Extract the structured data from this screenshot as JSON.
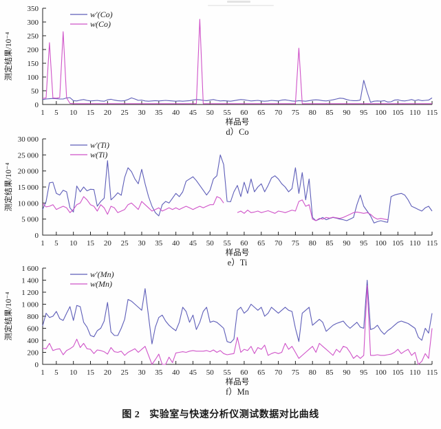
{
  "page": {
    "caption_prefix": "图 2",
    "caption_text": "实验室与快速分析仪测试数据对比曲线"
  },
  "colors": {
    "series_primary": "#5d5db8",
    "series_secondary": "#cf52c8",
    "axis": "#222222"
  },
  "chart_data": [
    {
      "type": "line",
      "subtitle": "d）Co",
      "xlabel": "样品号",
      "ylabel": "测定结果/10⁻⁴",
      "xlim": [
        1,
        115
      ],
      "ylim": [
        0,
        350
      ],
      "grid": false,
      "legend_position": "top-left-inside",
      "yticks": [
        0,
        50,
        100,
        150,
        200,
        250,
        300,
        350
      ],
      "ytick_labels": [
        "0",
        "50",
        "100",
        "150",
        "200",
        "250",
        "300",
        "350"
      ],
      "xticks": [
        1,
        5,
        10,
        15,
        20,
        25,
        30,
        35,
        40,
        45,
        50,
        55,
        60,
        65,
        70,
        75,
        80,
        85,
        90,
        95,
        100,
        105,
        110,
        115
      ],
      "series": [
        {
          "name": "w′(Co)",
          "color_key": "series_primary",
          "values": [
            18,
            20,
            21,
            22,
            21,
            20,
            20,
            24,
            25,
            14,
            13,
            16,
            18,
            15,
            13,
            14,
            15,
            13,
            12,
            17,
            19,
            16,
            14,
            13,
            14,
            18,
            24,
            20,
            15,
            16,
            13,
            12,
            13,
            14,
            13,
            14,
            15,
            14,
            13,
            12,
            13,
            12,
            13,
            14,
            16,
            18,
            17,
            15,
            14,
            16,
            18,
            15,
            13,
            14,
            13,
            12,
            14,
            16,
            18,
            17,
            15,
            13,
            14,
            15,
            13,
            12,
            13,
            15,
            14,
            13,
            16,
            17,
            15,
            13,
            12,
            14,
            13,
            12,
            14,
            16,
            17,
            16,
            14,
            13,
            15,
            17,
            20,
            23,
            22,
            18,
            15,
            14,
            14,
            16,
            88,
            45,
            8,
            12,
            13,
            12,
            14,
            9,
            10,
            16,
            17,
            14,
            13,
            15,
            18,
            14,
            17,
            14,
            15,
            16,
            24
          ]
        },
        {
          "name": "w(Co)",
          "color_key": "series_secondary",
          "values": [
            22,
            24,
            225,
            24,
            23,
            25,
            265,
            24,
            4,
            3,
            3,
            3,
            3,
            3,
            3,
            3,
            3,
            3,
            3,
            3,
            3,
            3,
            3,
            3,
            3,
            3,
            3,
            3,
            3,
            3,
            3,
            3,
            3,
            3,
            3,
            3,
            3,
            3,
            3,
            3,
            3,
            3,
            3,
            3,
            3,
            3,
            310,
            3,
            3,
            3,
            3,
            3,
            3,
            3,
            3,
            3,
            3,
            3,
            3,
            3,
            3,
            3,
            3,
            3,
            3,
            3,
            3,
            3,
            3,
            3,
            3,
            3,
            3,
            3,
            3,
            205,
            3,
            3,
            3,
            3,
            3,
            3,
            3,
            3,
            3,
            3,
            3,
            3,
            3,
            3,
            3,
            3,
            3,
            3,
            3,
            3,
            3,
            3,
            3,
            3,
            3,
            3,
            3,
            3,
            3,
            3,
            3,
            3,
            3,
            3,
            3,
            3,
            3,
            3,
            3
          ]
        }
      ]
    },
    {
      "type": "line",
      "subtitle": "e）Ti",
      "xlabel": "样品号",
      "ylabel": "测定结果/10⁻⁴",
      "xlim": [
        1,
        115
      ],
      "ylim": [
        0,
        30000
      ],
      "grid": false,
      "legend_position": "top-left-inside",
      "yticks": [
        0,
        5000,
        10000,
        15000,
        20000,
        25000,
        30000
      ],
      "ytick_labels": [
        "0",
        "5 000",
        "10 000",
        "15 000",
        "20 000",
        "25 000",
        "30 000"
      ],
      "xticks": [
        1,
        5,
        10,
        15,
        20,
        25,
        30,
        35,
        40,
        45,
        50,
        55,
        60,
        65,
        70,
        75,
        80,
        85,
        90,
        95,
        100,
        105,
        110,
        115
      ],
      "series": [
        {
          "name": "w′(Ti)",
          "color_key": "series_primary",
          "values": [
            8000,
            10500,
            16300,
            16500,
            13000,
            12500,
            14000,
            13500,
            8500,
            7200,
            15300,
            13500,
            15000,
            13800,
            14300,
            14200,
            9000,
            10500,
            11500,
            23200,
            11000,
            12000,
            13200,
            12400,
            18000,
            21000,
            19800,
            17500,
            16000,
            20500,
            16000,
            12000,
            9000,
            7000,
            6000,
            9500,
            10500,
            10000,
            11500,
            13000,
            12000,
            13500,
            16800,
            17500,
            18200,
            17000,
            15500,
            14000,
            12500,
            14000,
            17500,
            18500,
            25000,
            22000,
            10500,
            10400,
            13500,
            15500,
            12000,
            16500,
            13000,
            17500,
            13500,
            15000,
            16000,
            13500,
            15500,
            17800,
            18500,
            17500,
            16000,
            15000,
            13500,
            14500,
            21000,
            13000,
            19500,
            11000,
            17500,
            5500,
            4500,
            5000,
            5500,
            4800,
            5200,
            5500,
            5300,
            5000,
            4800,
            4500,
            5000,
            5500,
            9500,
            12500,
            9000,
            7500,
            6000,
            3800,
            4200,
            4500,
            4200,
            4000,
            12000,
            12500,
            12800,
            13000,
            12500,
            11000,
            9000,
            8500,
            8000,
            7500,
            8500,
            9000,
            7500
          ]
        },
        {
          "name": "w(Ti)",
          "color_key": "series_secondary",
          "values": [
            9800,
            8800,
            9000,
            9500,
            8000,
            8500,
            9000,
            8500,
            7000,
            8000,
            9500,
            10000,
            12000,
            11000,
            9500,
            9000,
            7500,
            9500,
            8500,
            6500,
            9000,
            8500,
            7000,
            7500,
            8000,
            9500,
            10000,
            9000,
            8000,
            10500,
            9500,
            8500,
            7500,
            8000,
            8500,
            7500,
            8000,
            8500,
            8000,
            8500,
            8000,
            8500,
            9000,
            8500,
            8000,
            8500,
            9000,
            8500,
            9000,
            9500,
            9500,
            12000,
            11500,
            10000,
            null,
            null,
            null,
            7000,
            7500,
            6800,
            7800,
            7000,
            7200,
            7500,
            7000,
            7300,
            7600,
            7200,
            6800,
            7500,
            7300,
            7000,
            7400,
            7800,
            7500,
            10500,
            11000,
            9000,
            9500,
            5000,
            4500,
            5200,
            5000,
            5500,
            5300,
            5600,
            5400,
            5200,
            5500,
            6000,
            6500,
            7000,
            7200,
            7000,
            6800,
            7000,
            6500,
            5500,
            5000,
            5200,
            5000,
            4800,
            null,
            null,
            null,
            null,
            null,
            null,
            null,
            null,
            null,
            null,
            null,
            null,
            null
          ]
        }
      ]
    },
    {
      "type": "line",
      "subtitle": "f）Mn",
      "xlabel": "样品号",
      "ylabel": "测定结果/10⁻⁴",
      "xlim": [
        1,
        115
      ],
      "ylim": [
        0,
        1600
      ],
      "grid": false,
      "legend_position": "top-left-inside",
      "yticks": [
        0,
        200,
        400,
        600,
        800,
        1000,
        1200,
        1400,
        1600
      ],
      "ytick_labels": [
        "0",
        "200",
        "400",
        "600",
        "800",
        "1 000",
        "1 200",
        "1 400",
        "1 600"
      ],
      "xticks": [
        1,
        5,
        10,
        15,
        20,
        25,
        30,
        35,
        40,
        45,
        50,
        55,
        60,
        65,
        70,
        75,
        80,
        85,
        90,
        95,
        100,
        105,
        110,
        115
      ],
      "series": [
        {
          "name": "w′(Mn)",
          "color_key": "series_primary",
          "values": [
            640,
            850,
            780,
            800,
            880,
            760,
            730,
            850,
            960,
            730,
            980,
            960,
            700,
            620,
            480,
            460,
            560,
            600,
            720,
            1030,
            540,
            480,
            480,
            600,
            750,
            1080,
            1050,
            1000,
            950,
            900,
            1260,
            800,
            340,
            620,
            780,
            820,
            720,
            650,
            600,
            560,
            700,
            950,
            880,
            700,
            820,
            580,
            700,
            880,
            950,
            700,
            720,
            700,
            650,
            600,
            380,
            360,
            420,
            900,
            950,
            850,
            900,
            1000,
            950,
            900,
            950,
            800,
            850,
            950,
            900,
            850,
            900,
            950,
            900,
            880,
            600,
            380,
            850,
            900,
            950,
            650,
            700,
            750,
            700,
            550,
            600,
            650,
            680,
            700,
            720,
            650,
            600,
            650,
            700,
            620,
            600,
            1400,
            580,
            600,
            650,
            560,
            500,
            560,
            600,
            650,
            700,
            720,
            700,
            680,
            640,
            600,
            450,
            400,
            600,
            520,
            850
          ]
        },
        {
          "name": "w(Mn)",
          "color_key": "series_secondary",
          "values": [
            270,
            260,
            350,
            230,
            250,
            260,
            160,
            230,
            260,
            300,
            420,
            280,
            350,
            260,
            250,
            180,
            240,
            230,
            210,
            170,
            280,
            210,
            200,
            220,
            150,
            200,
            230,
            260,
            200,
            250,
            300,
            150,
            0,
            80,
            170,
            0,
            0,
            120,
            30,
            190,
            200,
            210,
            200,
            220,
            230,
            220,
            220,
            220,
            230,
            210,
            240,
            200,
            230,
            180,
            160,
            170,
            180,
            450,
            200,
            250,
            230,
            300,
            180,
            280,
            250,
            320,
            150,
            180,
            200,
            180,
            200,
            350,
            250,
            300,
            200,
            100,
            150,
            200,
            250,
            300,
            200,
            350,
            300,
            250,
            200,
            150,
            250,
            200,
            300,
            280,
            200,
            100,
            150,
            100,
            150,
            1310,
            150,
            150,
            160,
            150,
            150,
            160,
            170,
            200,
            250,
            180,
            220,
            250,
            150,
            200,
            0,
            50,
            180,
            100,
            600
          ]
        }
      ]
    }
  ]
}
